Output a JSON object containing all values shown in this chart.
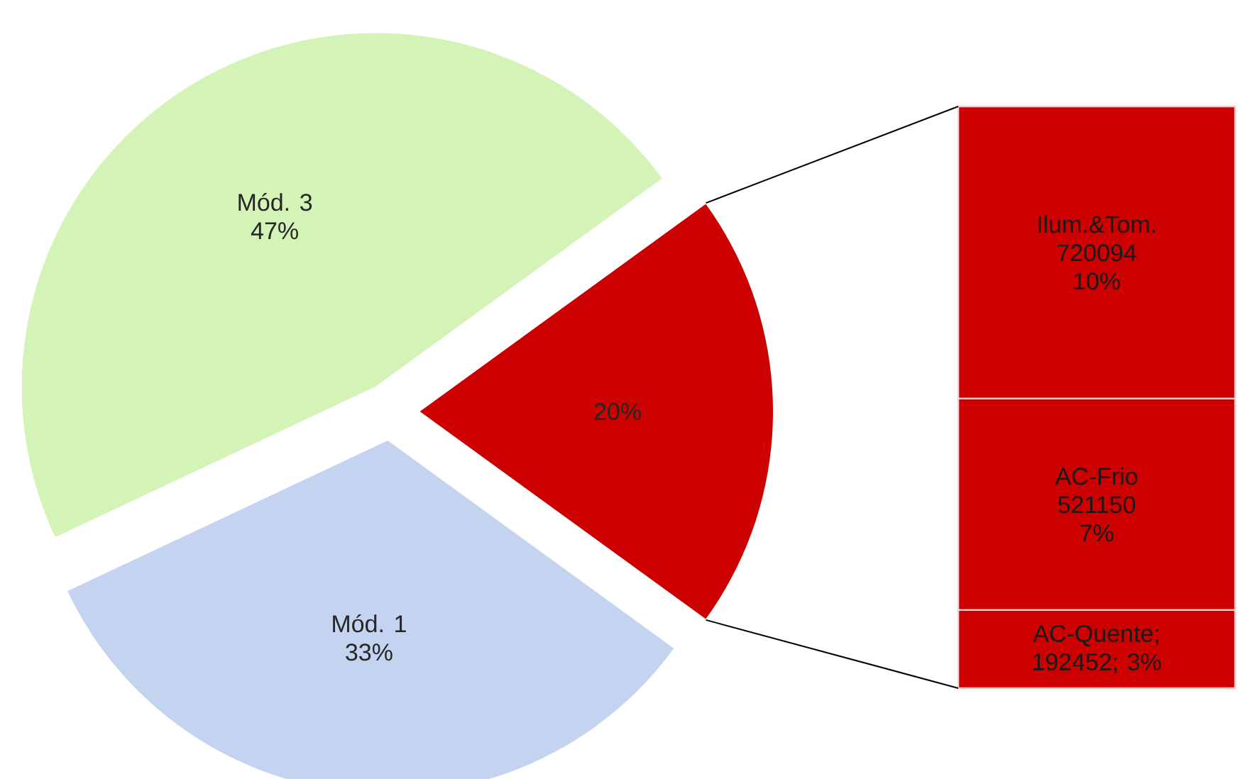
{
  "chart_data": [
    {
      "type": "pie",
      "categories": [
        "Mód. 3",
        "Mód. 1",
        null
      ],
      "values": [
        47,
        33,
        20
      ],
      "colors": [
        "#d3f4b6",
        "#c4d3f0",
        "#cc0000"
      ],
      "value_labels": [
        "47%",
        "33%",
        "20%"
      ]
    },
    {
      "type": "bar",
      "stacked": true,
      "categories": [
        null
      ],
      "data_labels": true,
      "annotations": [
        "7%",
        "10%"
      ],
      "series": [
        {
          "color": "#cc0000",
          "values": [
            192452
          ],
          "value_labels": [
            "AC-Quente; 192452; 3%"
          ]
        },
        {
          "name": "AC-Frio",
          "color": "#cc0000",
          "values": [
            521150
          ]
        },
        {
          "name": "Ilum.&Tom.",
          "color": "#cc0000",
          "values": [
            720094
          ]
        }
      ]
    }
  ]
}
